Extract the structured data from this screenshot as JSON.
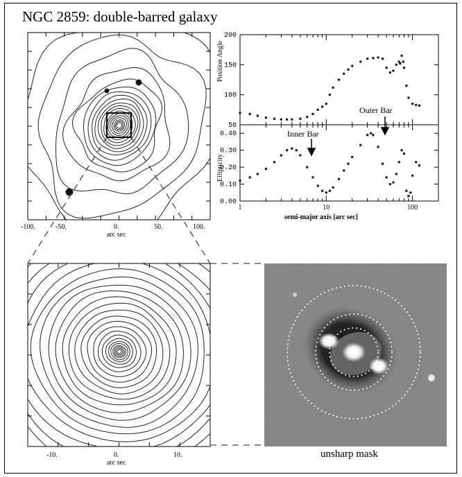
{
  "figure": {
    "title": "NGC 2859: double-barred galaxy",
    "top_contour": {
      "xticks": [
        "-100.",
        "-50.",
        "0.",
        "50.",
        "100."
      ],
      "xlabel": "arc sec"
    },
    "zoom_contour": {
      "xticks": [
        "-10.",
        "0.",
        "10."
      ],
      "xlabel": "arc sec"
    },
    "unsharp_caption": "unsharp mask",
    "annotations": {
      "inner_bar": "Inner Bar",
      "outer_bar": "Outer Bar"
    }
  },
  "chart_data": [
    {
      "type": "scatter",
      "ylabel": "Position Angle",
      "xlabel": "",
      "xscale": "log",
      "xlim": [
        1,
        200
      ],
      "ylim": [
        50,
        200
      ],
      "yticks": [
        "50",
        "100",
        "150",
        "200"
      ],
      "x": [
        1,
        1.3,
        1.6,
        2,
        2.5,
        3,
        3.5,
        4,
        5,
        6,
        7,
        8,
        9,
        10,
        11,
        12,
        14,
        16,
        18,
        20,
        25,
        30,
        35,
        40,
        45,
        50,
        55,
        60,
        65,
        70,
        72,
        75,
        78,
        80,
        85,
        90,
        100,
        110,
        120
      ],
      "values": [
        70,
        68,
        65,
        62,
        60,
        59,
        59,
        59,
        60,
        63,
        68,
        75,
        80,
        85,
        100,
        112,
        125,
        135,
        142,
        148,
        155,
        160,
        161,
        162,
        160,
        145,
        137,
        140,
        150,
        155,
        152,
        165,
        155,
        145,
        115,
        95,
        85,
        83,
        82
      ]
    },
    {
      "type": "scatter",
      "ylabel": "Ellipticity",
      "xlabel": "semi-major axis [arc sec]",
      "xscale": "log",
      "xlim": [
        1,
        200
      ],
      "ylim": [
        0,
        0.45
      ],
      "xticks": [
        "1",
        "10",
        "100"
      ],
      "yticks": [
        "0.00",
        "0.10",
        "0.20",
        "0.30",
        "0.40"
      ],
      "x": [
        1,
        1.3,
        1.6,
        2,
        2.5,
        3,
        3.5,
        4,
        4.5,
        5,
        6,
        7,
        8,
        9,
        10,
        11,
        12,
        14,
        16,
        18,
        20,
        25,
        30,
        33,
        35,
        40,
        45,
        50,
        55,
        60,
        65,
        70,
        75,
        80,
        85,
        90,
        95,
        100,
        110,
        120
      ],
      "values": [
        0.12,
        0.14,
        0.16,
        0.19,
        0.23,
        0.27,
        0.3,
        0.31,
        0.3,
        0.27,
        0.2,
        0.14,
        0.09,
        0.06,
        0.05,
        0.06,
        0.08,
        0.13,
        0.18,
        0.22,
        0.26,
        0.33,
        0.39,
        0.4,
        0.39,
        0.32,
        0.22,
        0.14,
        0.1,
        0.11,
        0.16,
        0.23,
        0.3,
        0.28,
        0.06,
        0.03,
        0.05,
        0.15,
        0.23,
        0.21
      ]
    }
  ]
}
